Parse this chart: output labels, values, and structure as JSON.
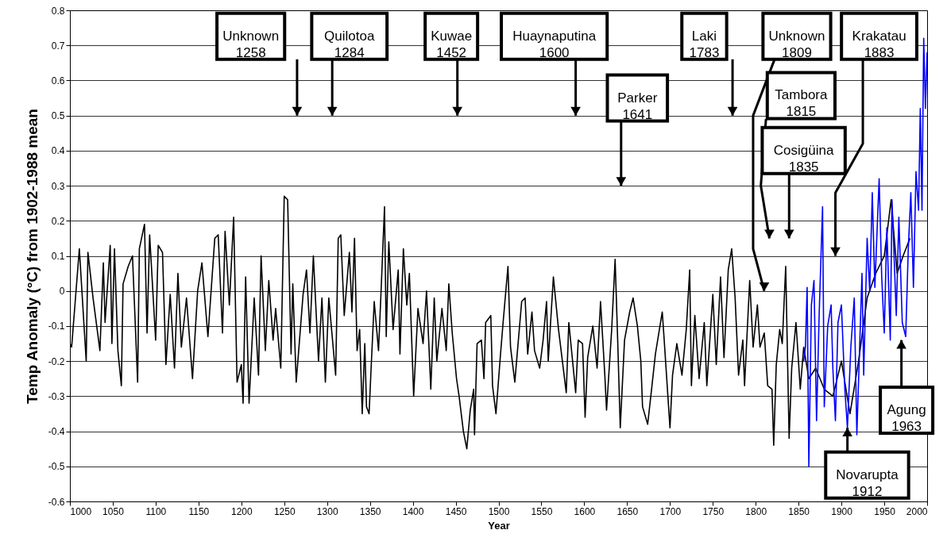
{
  "chart_data": {
    "type": "line",
    "xlabel": "Year",
    "ylabel": "Temp Anomaly (°C) from 1902-1988 mean",
    "xlim": [
      1000,
      2000
    ],
    "ylim": [
      -0.6,
      0.8
    ],
    "xticks": [
      1000,
      1050,
      1100,
      1150,
      1200,
      1250,
      1300,
      1350,
      1400,
      1450,
      1500,
      1550,
      1600,
      1650,
      1700,
      1750,
      1800,
      1850,
      1900,
      1950,
      2000
    ],
    "yticks": [
      -0.6,
      -0.5,
      -0.4,
      -0.3,
      -0.2,
      -0.1,
      0,
      0.1,
      0.2,
      0.3,
      0.4,
      0.5,
      0.6,
      0.7,
      0.8
    ],
    "grid": "y",
    "series": [
      {
        "color": "#000000",
        "x": [
          1000,
          1002,
          1011,
          1019,
          1021,
          1027,
          1035,
          1039,
          1041,
          1047,
          1049,
          1052,
          1056,
          1060,
          1062,
          1068,
          1073,
          1079,
          1081,
          1087,
          1090,
          1093,
          1100,
          1103,
          1108,
          1112,
          1117,
          1122,
          1126,
          1130,
          1136,
          1143,
          1149,
          1154,
          1161,
          1169,
          1173,
          1178,
          1181,
          1186,
          1191,
          1195,
          1200,
          1202,
          1205,
          1209,
          1215,
          1220,
          1223,
          1228,
          1232,
          1237,
          1240,
          1246,
          1250,
          1254,
          1258,
          1260,
          1264,
          1272,
          1276,
          1280,
          1284,
          1290,
          1294,
          1298,
          1302,
          1310,
          1313,
          1316,
          1320,
          1326,
          1329,
          1332,
          1335,
          1338,
          1341,
          1344,
          1346,
          1349,
          1351,
          1355,
          1360,
          1363,
          1367,
          1369,
          1372,
          1377,
          1383,
          1385,
          1389,
          1393,
          1396,
          1401,
          1406,
          1412,
          1416,
          1421,
          1425,
          1428,
          1434,
          1439,
          1442,
          1446,
          1451,
          1454,
          1459,
          1463,
          1467,
          1471,
          1472,
          1475,
          1480,
          1483,
          1485,
          1491,
          1493,
          1497,
          1502,
          1505,
          1511,
          1514,
          1519,
          1527,
          1531,
          1534,
          1539,
          1542,
          1548,
          1552,
          1556,
          1558,
          1564,
          1570,
          1573,
          1579,
          1582,
          1590,
          1593,
          1598,
          1601,
          1604,
          1610,
          1615,
          1619,
          1624,
          1626,
          1632,
          1636,
          1639,
          1642,
          1647,
          1653,
          1657,
          1662,
          1666,
          1668,
          1674,
          1679,
          1683,
          1691,
          1693,
          1700,
          1703,
          1708,
          1714,
          1719,
          1723,
          1725,
          1729,
          1734,
          1740,
          1743,
          1750,
          1754,
          1759,
          1763,
          1768,
          1772,
          1776,
          1780,
          1785,
          1787,
          1793,
          1797,
          1802,
          1805,
          1810,
          1814,
          1819,
          1821,
          1824,
          1828,
          1831,
          1835,
          1839,
          1842,
          1847,
          1852,
          1856,
          1862,
          1870,
          1880,
          1890,
          1900,
          1910,
          1920,
          1930,
          1940,
          1950,
          1958,
          1965,
          1972,
          1980
        ],
        "values": [
          -0.15,
          -0.16,
          0.12,
          -0.2,
          0.11,
          -0.02,
          -0.17,
          0.08,
          -0.09,
          0.13,
          -0.15,
          0.12,
          -0.17,
          -0.27,
          0.02,
          0.07,
          0.1,
          -0.26,
          0.12,
          0.19,
          -0.12,
          0.16,
          -0.14,
          0.13,
          0.11,
          -0.21,
          -0.01,
          -0.22,
          0.05,
          -0.16,
          -0.02,
          -0.25,
          0,
          0.08,
          -0.13,
          0.15,
          0.16,
          -0.12,
          0.17,
          -0.04,
          0.21,
          -0.26,
          -0.21,
          -0.32,
          0.04,
          -0.32,
          -0.02,
          -0.24,
          0.1,
          -0.17,
          0.03,
          -0.14,
          -0.05,
          -0.22,
          0.27,
          0.26,
          -0.18,
          0.02,
          -0.26,
          -0.01,
          0.06,
          -0.12,
          0.1,
          -0.2,
          -0.02,
          -0.26,
          -0.02,
          -0.24,
          0.15,
          0.16,
          -0.07,
          0.11,
          -0.06,
          0.15,
          -0.17,
          -0.11,
          -0.35,
          -0.15,
          -0.33,
          -0.35,
          -0.24,
          -0.03,
          -0.17,
          0,
          0.24,
          -0.13,
          0.14,
          -0.11,
          0.06,
          -0.18,
          0.12,
          -0.04,
          0.05,
          -0.3,
          -0.05,
          -0.15,
          0,
          -0.28,
          -0.02,
          -0.2,
          -0.05,
          -0.17,
          0.02,
          -0.12,
          -0.25,
          -0.3,
          -0.4,
          -0.45,
          -0.34,
          -0.28,
          -0.41,
          -0.15,
          -0.14,
          -0.25,
          -0.09,
          -0.07,
          -0.27,
          -0.35,
          -0.19,
          -0.1,
          0.07,
          -0.16,
          -0.26,
          -0.03,
          -0.02,
          -0.18,
          -0.06,
          -0.17,
          -0.22,
          -0.14,
          -0.03,
          -0.2,
          0.04,
          -0.11,
          -0.17,
          -0.29,
          -0.09,
          -0.29,
          -0.14,
          -0.15,
          -0.36,
          -0.19,
          -0.1,
          -0.22,
          -0.03,
          -0.24,
          -0.34,
          -0.11,
          0.09,
          -0.14,
          -0.39,
          -0.14,
          -0.06,
          -0.02,
          -0.1,
          -0.2,
          -0.33,
          -0.38,
          -0.27,
          -0.18,
          -0.06,
          -0.13,
          -0.39,
          -0.24,
          -0.15,
          -0.24,
          -0.11,
          0.06,
          -0.27,
          -0.07,
          -0.25,
          -0.09,
          -0.27,
          -0.01,
          -0.21,
          0.04,
          -0.19,
          0.06,
          0.12,
          -0.02,
          -0.24,
          -0.14,
          -0.27,
          0.03,
          -0.16,
          -0.04,
          -0.16,
          -0.12,
          -0.27,
          -0.28,
          -0.44,
          -0.21,
          -0.11,
          -0.15,
          0.07,
          -0.42,
          -0.22,
          -0.09,
          -0.28,
          -0.16,
          -0.25,
          -0.22,
          -0.28,
          -0.3,
          -0.2,
          -0.35,
          -0.2,
          -0.02,
          0.05,
          0.1,
          0.26,
          0.05,
          0.1,
          0.15
        ]
      },
      {
        "color": "#0000ff",
        "x": [
          1856,
          1858,
          1860,
          1862,
          1865,
          1868,
          1871,
          1874,
          1878,
          1880,
          1884,
          1888,
          1890,
          1893,
          1896,
          1900,
          1904,
          1907,
          1911,
          1915,
          1918,
          1921,
          1924,
          1926,
          1930,
          1933,
          1936,
          1939,
          1944,
          1947,
          1950,
          1953,
          1957,
          1959,
          1964,
          1967,
          1971,
          1975,
          1978,
          1981,
          1984,
          1987,
          1990,
          1992,
          1994,
          1996,
          1998,
          2000
        ],
        "values": [
          -0.2,
          -0.16,
          0.01,
          -0.5,
          -0.04,
          0.03,
          -0.37,
          -0.07,
          0.24,
          -0.33,
          -0.1,
          -0.04,
          -0.22,
          -0.37,
          -0.09,
          -0.04,
          -0.28,
          -0.39,
          -0.16,
          -0.02,
          -0.41,
          -0.18,
          0.05,
          -0.24,
          0.15,
          0,
          0.28,
          0.01,
          0.32,
          0.04,
          -0.12,
          0.18,
          -0.14,
          0.26,
          -0.07,
          0.21,
          -0.09,
          -0.13,
          0.12,
          0.28,
          0.01,
          0.34,
          0.23,
          0.52,
          0.23,
          0.72,
          0.52,
          0.68
        ]
      }
    ],
    "annotations": [
      "Unknown\n1258",
      "Quilotoa\n1284",
      "Kuwae\n1452",
      "Huaynaputina\n1600",
      "Parker\n1641",
      "Laki\n1783",
      "Unknown\n1809",
      "Tambora\n1815",
      "Cosigüina\n1835",
      "Krakatau\n1883",
      "Agung\n1963",
      {
        "text": "Novarupta\n1912",
        "x": 1907,
        "y": -0.39
      }
    ]
  }
}
